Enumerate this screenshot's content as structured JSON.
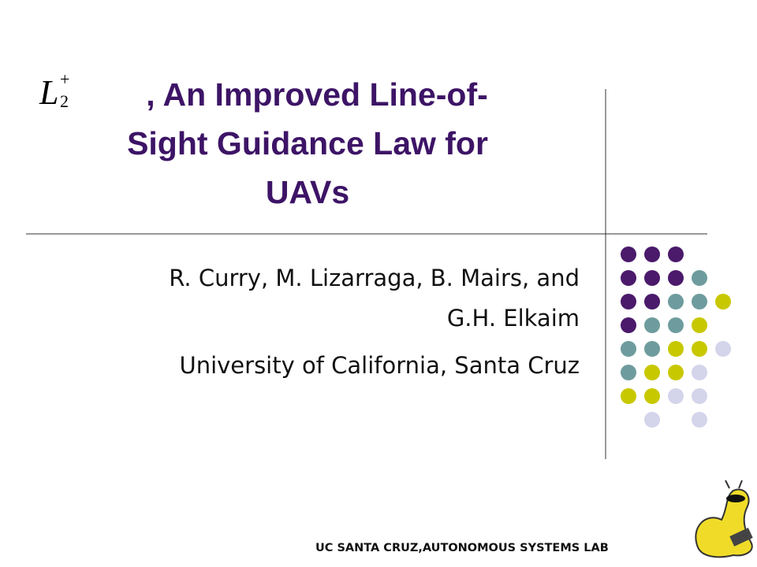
{
  "slide": {
    "math": {
      "base": "L",
      "subscript": "2",
      "superscript": "+"
    },
    "title_lines": [
      ", An Improved Line-of-",
      "Sight Guidance Law for",
      "UAVs"
    ],
    "author_lines": [
      "R. Curry, M. Lizarraga, B. Mairs, and",
      "G.H. Elkaim"
    ],
    "affiliation": "University of California, Santa Cruz",
    "footer": "UC SANTA CRUZ,AUTONOMOUS SYSTEMS LAB"
  }
}
